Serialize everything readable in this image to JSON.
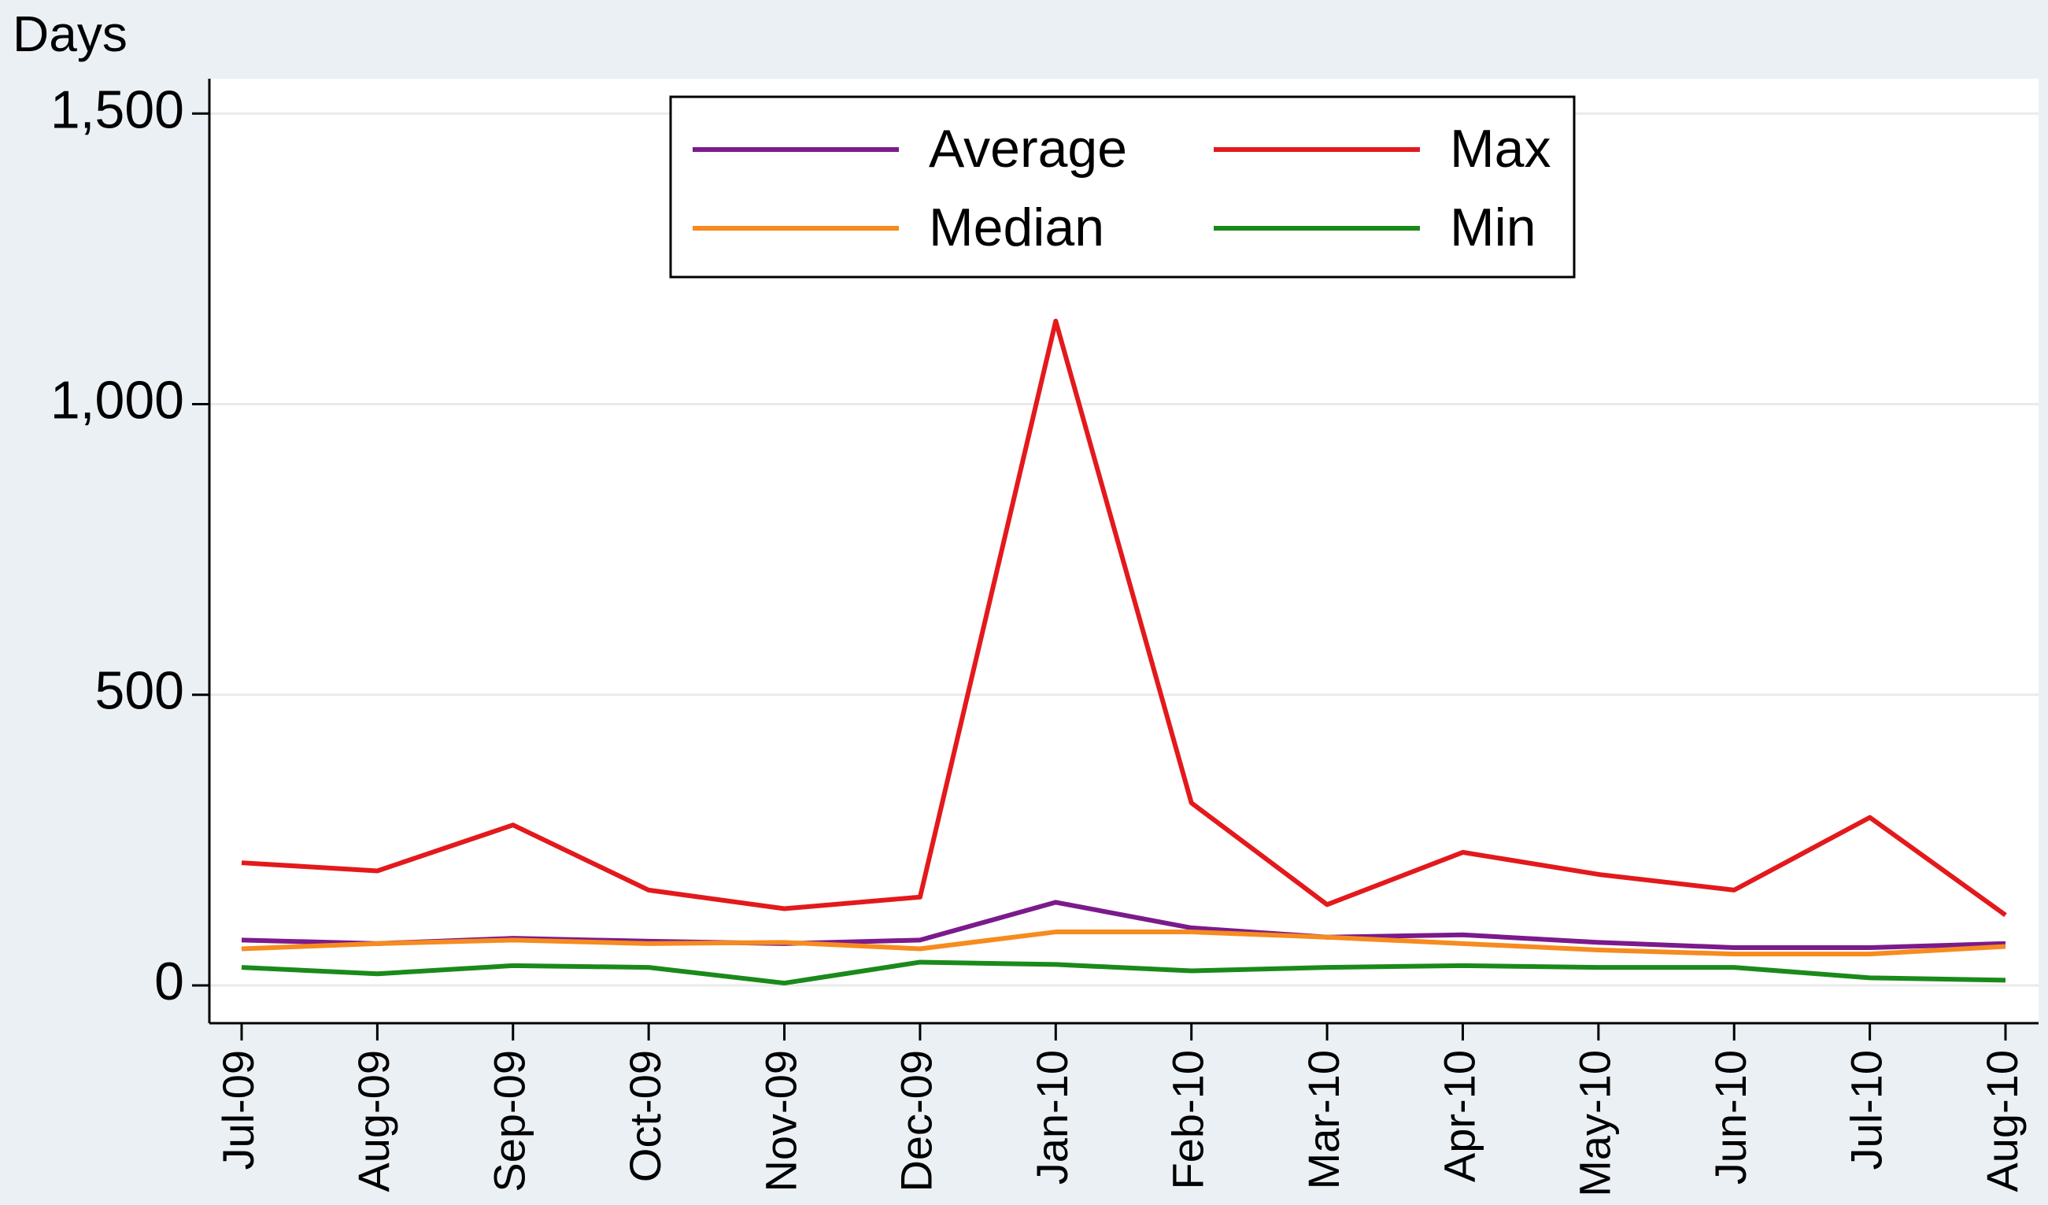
{
  "chart_data": {
    "type": "line",
    "y_axis_label": "Days",
    "categories": [
      "Jul-09",
      "Aug-09",
      "Sep-09",
      "Oct-09",
      "Nov-09",
      "Dec-09",
      "Jan-10",
      "Feb-10",
      "Mar-10",
      "Apr-10",
      "May-10",
      "Jun-10",
      "Jul-10",
      "Aug-10"
    ],
    "series": [
      {
        "name": "Average",
        "color": "#7b1a8c",
        "values": [
          78,
          72,
          81,
          76,
          72,
          78,
          143,
          99,
          83,
          87,
          74,
          65,
          65,
          72
        ]
      },
      {
        "name": "Max",
        "color": "#e3191c",
        "values": [
          211,
          197,
          276,
          164,
          132,
          152,
          1143,
          314,
          139,
          229,
          191,
          164,
          289,
          121
        ]
      },
      {
        "name": "Median",
        "color": "#f68b1f",
        "values": [
          63,
          72,
          78,
          72,
          74,
          63,
          92,
          92,
          83,
          72,
          61,
          54,
          54,
          67
        ]
      },
      {
        "name": "Min",
        "color": "#1a8a1a",
        "values": [
          31,
          20,
          34,
          31,
          4,
          40,
          36,
          25,
          31,
          34,
          31,
          31,
          13,
          9
        ]
      }
    ],
    "ylim": [
      -65,
      1560
    ],
    "yticks": [
      0,
      500,
      {
        "value": 1000,
        "label": "1,000"
      },
      {
        "value": 1500,
        "label": "1,500"
      }
    ],
    "grid": true,
    "legend": "top"
  }
}
